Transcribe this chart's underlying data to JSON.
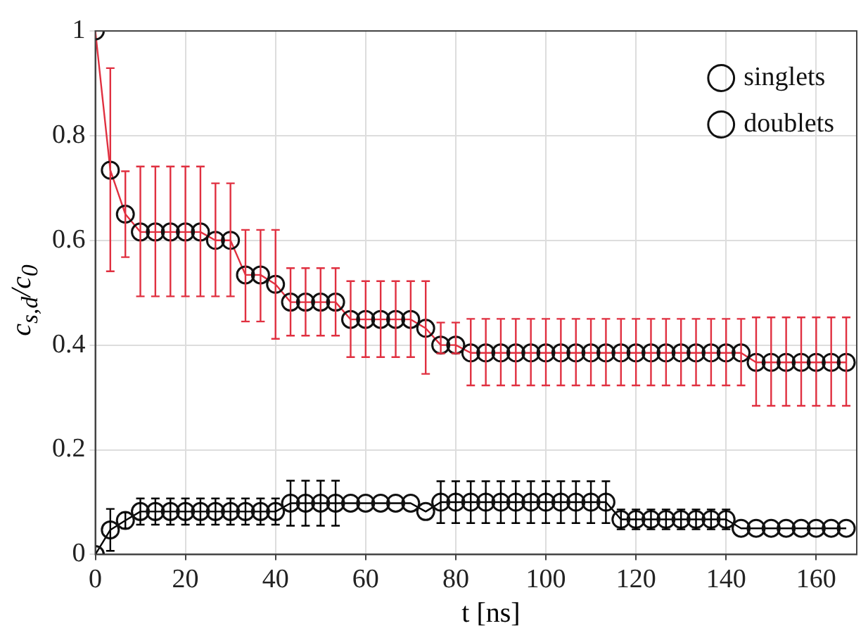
{
  "chart_data": {
    "type": "line",
    "xlabel": "t [ns]",
    "ylabel": "c$_{s,d}$/c$_{0}$",
    "x": [
      0,
      3.33,
      6.67,
      10,
      13.33,
      16.67,
      20,
      23.33,
      26.67,
      30,
      33.33,
      36.67,
      40,
      43.33,
      46.67,
      50,
      53.33,
      56.67,
      60,
      63.33,
      66.67,
      70,
      73.33,
      76.67,
      80,
      83.33,
      86.67,
      90,
      93.33,
      96.67,
      100,
      103.33,
      106.67,
      110,
      113.33,
      116.67,
      120,
      123.33,
      126.67,
      130,
      133.33,
      136.67,
      140,
      143.33,
      146.67,
      150,
      153.33,
      156.67,
      160,
      163.33,
      166.67
    ],
    "series": [
      {
        "name": "singlets",
        "color": "#e03040",
        "values": [
          1.0,
          0.734,
          0.65,
          0.616,
          0.616,
          0.616,
          0.616,
          0.616,
          0.6,
          0.6,
          0.534,
          0.534,
          0.516,
          0.482,
          0.482,
          0.482,
          0.482,
          0.449,
          0.449,
          0.449,
          0.449,
          0.449,
          0.432,
          0.4,
          0.4,
          0.385,
          0.385,
          0.385,
          0.385,
          0.385,
          0.385,
          0.385,
          0.385,
          0.385,
          0.385,
          0.385,
          0.385,
          0.385,
          0.385,
          0.385,
          0.385,
          0.385,
          0.385,
          0.385,
          0.367,
          0.367,
          0.367,
          0.367,
          0.367,
          0.367,
          0.367
        ],
        "errors": [
          null,
          [
            0.541,
            0.929
          ],
          [
            0.568,
            0.732
          ],
          [
            0.493,
            0.741
          ],
          [
            0.493,
            0.741
          ],
          [
            0.493,
            0.741
          ],
          [
            0.493,
            0.741
          ],
          [
            0.493,
            0.741
          ],
          [
            0.493,
            0.709
          ],
          [
            0.493,
            0.709
          ],
          [
            0.445,
            0.62
          ],
          [
            0.445,
            0.62
          ],
          [
            0.412,
            0.62
          ],
          [
            0.418,
            0.547
          ],
          [
            0.418,
            0.547
          ],
          [
            0.418,
            0.547
          ],
          [
            0.418,
            0.547
          ],
          [
            0.377,
            0.522
          ],
          [
            0.377,
            0.522
          ],
          [
            0.377,
            0.522
          ],
          [
            0.377,
            0.522
          ],
          [
            0.377,
            0.522
          ],
          [
            0.345,
            0.522
          ],
          [
            0.384,
            0.443
          ],
          [
            0.384,
            0.443
          ],
          [
            0.323,
            0.45
          ],
          [
            0.323,
            0.45
          ],
          [
            0.323,
            0.45
          ],
          [
            0.323,
            0.45
          ],
          [
            0.323,
            0.45
          ],
          [
            0.323,
            0.45
          ],
          [
            0.323,
            0.45
          ],
          [
            0.323,
            0.45
          ],
          [
            0.323,
            0.45
          ],
          [
            0.323,
            0.45
          ],
          [
            0.323,
            0.45
          ],
          [
            0.323,
            0.45
          ],
          [
            0.323,
            0.45
          ],
          [
            0.323,
            0.45
          ],
          [
            0.323,
            0.45
          ],
          [
            0.323,
            0.45
          ],
          [
            0.323,
            0.45
          ],
          [
            0.323,
            0.45
          ],
          [
            0.323,
            0.45
          ],
          [
            0.284,
            0.453
          ],
          [
            0.284,
            0.453
          ],
          [
            0.284,
            0.453
          ],
          [
            0.284,
            0.453
          ],
          [
            0.284,
            0.453
          ],
          [
            0.284,
            0.453
          ],
          [
            0.284,
            0.453
          ]
        ]
      },
      {
        "name": "doublets",
        "color": "#000000",
        "values": [
          0,
          0.047,
          0.065,
          0.082,
          0.082,
          0.082,
          0.082,
          0.082,
          0.082,
          0.082,
          0.082,
          0.082,
          0.082,
          0.098,
          0.098,
          0.098,
          0.098,
          0.098,
          0.098,
          0.098,
          0.098,
          0.098,
          0.082,
          0.1,
          0.1,
          0.1,
          0.1,
          0.1,
          0.1,
          0.1,
          0.1,
          0.1,
          0.1,
          0.1,
          0.1,
          0.067,
          0.067,
          0.067,
          0.067,
          0.067,
          0.067,
          0.067,
          0.067,
          0.05,
          0.05,
          0.05,
          0.05,
          0.05,
          0.05,
          0.05,
          0.05
        ],
        "errors": [
          null,
          0.04,
          0.015,
          0.025,
          0.025,
          0.025,
          0.025,
          0.025,
          0.025,
          0.025,
          0.025,
          0.025,
          0.025,
          0.043,
          0.043,
          0.043,
          0.043,
          null,
          null,
          null,
          null,
          null,
          null,
          0.04,
          0.04,
          0.04,
          0.04,
          0.04,
          0.04,
          0.04,
          0.04,
          0.04,
          0.04,
          0.04,
          0.04,
          0.019,
          0.019,
          0.019,
          0.019,
          0.019,
          0.019,
          0.019,
          0.019,
          null,
          null,
          null,
          null,
          null,
          null,
          null,
          null
        ]
      }
    ],
    "xlim": [
      0,
      169
    ],
    "xticks": [
      0,
      20,
      40,
      60,
      80,
      100,
      120,
      140,
      160
    ],
    "ylim": [
      0,
      1
    ],
    "yticks": [
      0,
      0.2,
      0.4,
      0.6,
      0.8,
      1
    ],
    "grid": true,
    "legend": "top right",
    "marker": "circle",
    "line_style": "solid"
  }
}
